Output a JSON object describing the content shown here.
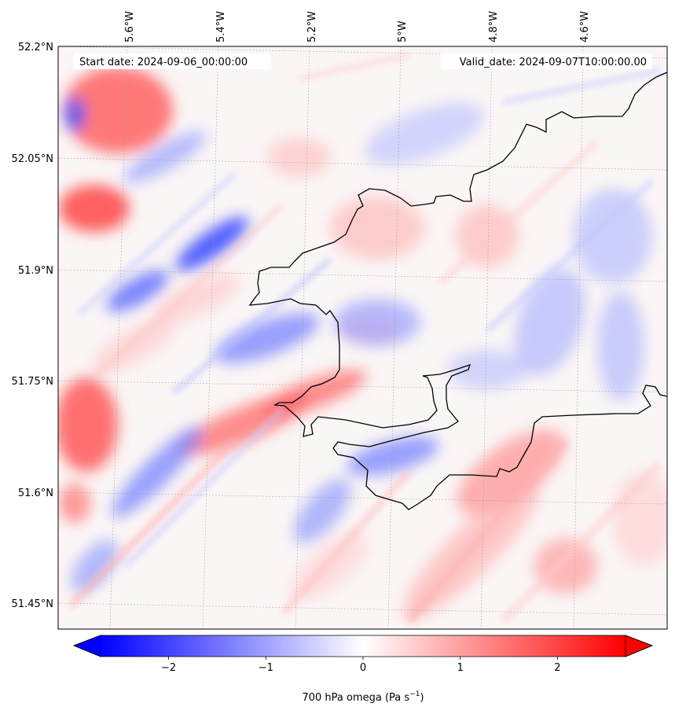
{
  "map": {
    "start_date_label": "Start date: 2024-09-06_00:00:00",
    "valid_date_label": "Valid_date: 2024-09-07T10:00:00.00",
    "lon_labels": [
      "5.6°W",
      "5.4°W",
      "5.2°W",
      "5°W",
      "4.8°W",
      "4.6°W"
    ],
    "lat_labels": [
      "52.2°N",
      "52.05°N",
      "51.9°N",
      "51.75°N",
      "51.6°N",
      "51.45°N"
    ],
    "coastline_color": "#000000",
    "field": "700 hPa omega",
    "colormap": "bwr"
  },
  "colorbar": {
    "label": "700 hPa omega (Pa s",
    "unit_exponent": "−1",
    "label_close": ")",
    "ticks": [
      "−2",
      "−1",
      "0",
      "1",
      "2"
    ],
    "tick_values": [
      -2,
      -1,
      0,
      1,
      2
    ],
    "vmin": -2.7,
    "vmax": 2.7,
    "extend": "both",
    "colors": {
      "low": "#0000ff",
      "mid": "#ffffff",
      "high": "#ff0000"
    }
  }
}
